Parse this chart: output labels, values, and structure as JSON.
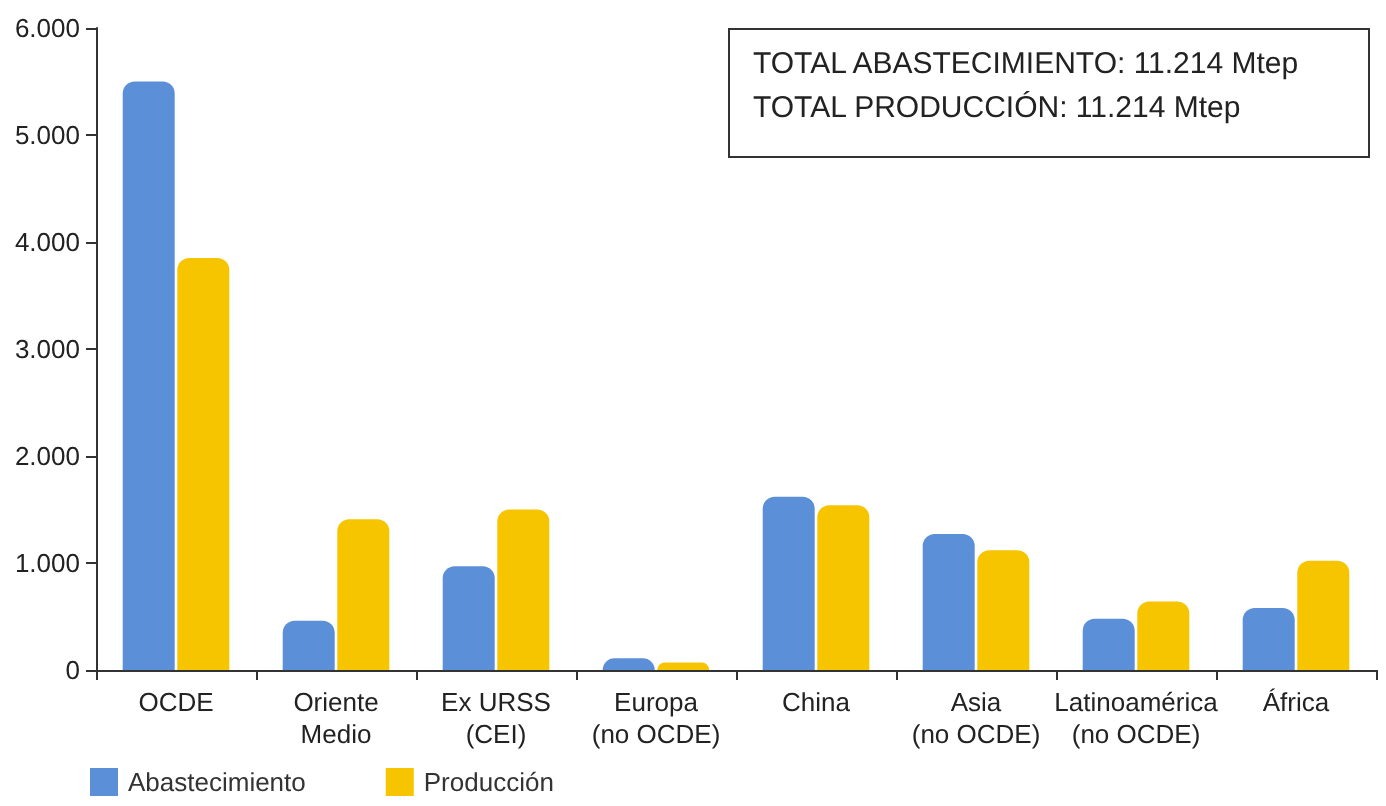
{
  "chart_data": {
    "type": "bar",
    "categories": [
      "OCDE",
      "Oriente\nMedio",
      "Ex URSS\n(CEI)",
      "Europa\n(no OCDE)",
      "China",
      "Asia\n(no OCDE)",
      "Latinoamérica\n(no OCDE)",
      "África"
    ],
    "series": [
      {
        "name": "Abastecimiento",
        "color": "#5b8fd8",
        "values": [
          5500,
          460,
          970,
          110,
          1620,
          1270,
          480,
          580
        ]
      },
      {
        "name": "Producción",
        "color": "#f7c400",
        "values": [
          3850,
          1410,
          1500,
          70,
          1540,
          1120,
          640,
          1020
        ]
      }
    ],
    "ylim": [
      0,
      6000
    ],
    "yticks": [
      {
        "value": 0,
        "label": "0"
      },
      {
        "value": 1000,
        "label": "1.000"
      },
      {
        "value": 2000,
        "label": "2.000"
      },
      {
        "value": 3000,
        "label": "3.000"
      },
      {
        "value": 4000,
        "label": "4.000"
      },
      {
        "value": 5000,
        "label": "5.000"
      },
      {
        "value": 6000,
        "label": "6.000"
      }
    ],
    "annotations": [
      "TOTAL ABASTECIMIENTO: 11.214 Mtep",
      "TOTAL PRODUCCIÓN: 11.214 Mtep"
    ],
    "grid": false,
    "legend": "bottom left"
  }
}
